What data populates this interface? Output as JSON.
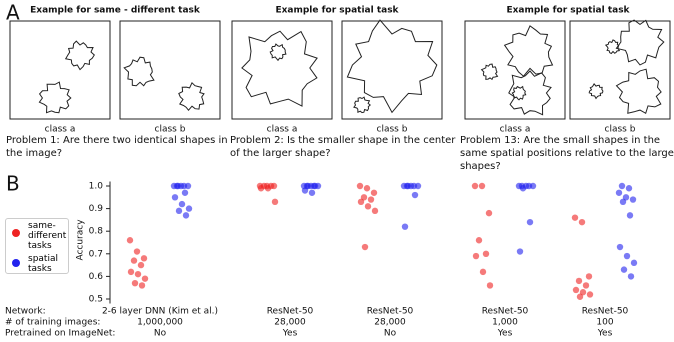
{
  "panel_labels": [
    "A",
    "B"
  ],
  "panel_a": [
    {
      "title": "Example for same - different task",
      "classes": [
        "class a",
        "class b"
      ],
      "problem": "Problem 1: Are there two identical shapes in the image?"
    },
    {
      "title": "Example for spatial task",
      "classes": [
        "class a",
        "class b"
      ],
      "problem": "Problem 2: Is the smaller shape in the center of the larger shape?"
    },
    {
      "title": "Example for spatial task",
      "classes": [
        "class a",
        "class b"
      ],
      "problem": "Problem 13: Are the small shapes in the same spatial positions relative to the large shapes?"
    }
  ],
  "chart_data": {
    "type": "strip",
    "y_label": "Accuracy",
    "row_labels": [
      "Network:",
      "# of training images:",
      "Pretrained on ImageNet:"
    ],
    "categories": [
      "2-6 layer DNN (Kim et al.)",
      "ResNet-50",
      "ResNet-50",
      "ResNet-50",
      "ResNet-50"
    ],
    "training_images": [
      "1,000,000",
      "28,000",
      "28,000",
      "1,000",
      "100"
    ],
    "pretrained": [
      "No",
      "Yes",
      "No",
      "Yes",
      "Yes"
    ],
    "ylim": [
      0.48,
      1.02
    ],
    "yticks": [
      0.5,
      0.6,
      0.7,
      0.8,
      0.9,
      {
        "value": 1,
        "label": "1.0"
      }
    ],
    "legend": "left",
    "series": [
      {
        "name": "same-different tasks",
        "color": "#ee2222",
        "values": [
          [
            0.76,
            0.71,
            0.68,
            0.67,
            0.65,
            0.62,
            0.61,
            0.59,
            0.57,
            0.56
          ],
          [
            1,
            1,
            1,
            1,
            1,
            0.99,
            0.99,
            0.93
          ],
          [
            1,
            0.99,
            0.97,
            0.95,
            0.94,
            0.93,
            0.91,
            0.89,
            0.73
          ],
          [
            1,
            1,
            0.88,
            0.76,
            0.7,
            0.69,
            0.62,
            0.56
          ],
          [
            0.86,
            0.84,
            0.6,
            0.58,
            0.56,
            0.54,
            0.53,
            0.52,
            0.51
          ]
        ]
      },
      {
        "name": "spatial tasks",
        "color": "#2222ee",
        "values": [
          [
            1,
            1,
            1,
            1,
            1,
            1,
            0.97,
            0.95,
            0.92,
            0.9,
            0.89,
            0.87
          ],
          [
            1,
            1,
            1,
            1,
            1,
            1,
            1,
            0.98,
            0.97
          ],
          [
            1,
            1,
            1,
            1,
            1,
            1,
            0.96,
            0.82
          ],
          [
            1,
            1,
            1,
            1,
            1,
            0.99,
            0.84,
            0.71
          ],
          [
            1,
            0.99,
            0.97,
            0.95,
            0.94,
            0.93,
            0.87,
            0.73,
            0.69,
            0.66,
            0.63,
            0.6
          ]
        ]
      }
    ]
  }
}
